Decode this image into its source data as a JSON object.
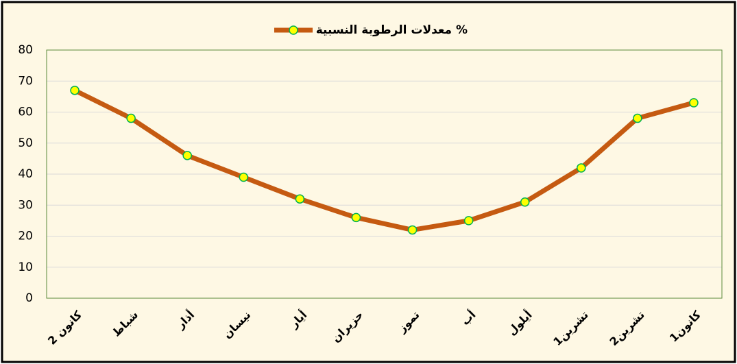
{
  "chart_data": {
    "type": "line",
    "categories": [
      "كانون 2",
      "شباط",
      "أذار",
      "نيسان",
      "أيار",
      "حزيران",
      "تموز",
      "أب",
      "أيلول",
      "تشرين1",
      "تشرين2",
      "كانون1"
    ],
    "series": [
      {
        "name": "معدلات الرطوبة النسبية %",
        "color": "#c55a11",
        "marker_fill": "#ffff00",
        "marker_stroke": "#00b050",
        "values": [
          67,
          58,
          46,
          39,
          32,
          26,
          22,
          25,
          31,
          42,
          58,
          63
        ]
      }
    ],
    "ylim": [
      0,
      80
    ],
    "yticks": [
      0,
      10,
      20,
      30,
      40,
      50,
      60,
      70,
      80
    ],
    "grid": true,
    "legend": "top"
  }
}
